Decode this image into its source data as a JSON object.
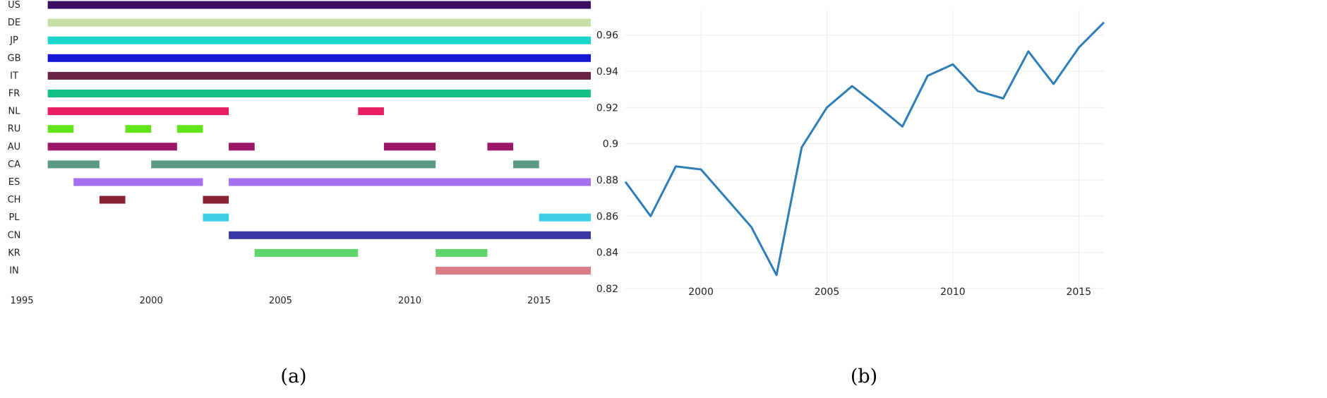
{
  "chart_data": [
    {
      "type": "timeline",
      "panel_label": "(a)",
      "x_ticks": [
        1995,
        2000,
        2005,
        2010,
        2015
      ],
      "xlim": [
        1995,
        2017
      ],
      "rows": [
        {
          "country": "US",
          "color": "#3b0d63",
          "intervals": [
            [
              1996,
              2017
            ]
          ]
        },
        {
          "country": "DE",
          "color": "#c4dea6",
          "intervals": [
            [
              1996,
              2017
            ]
          ]
        },
        {
          "country": "JP",
          "color": "#1ed5cc",
          "intervals": [
            [
              1996,
              2017
            ]
          ]
        },
        {
          "country": "GB",
          "color": "#1616d6",
          "intervals": [
            [
              1996,
              2017
            ]
          ]
        },
        {
          "country": "IT",
          "color": "#6a2347",
          "intervals": [
            [
              1996,
              2017
            ]
          ]
        },
        {
          "country": "FR",
          "color": "#16c186",
          "intervals": [
            [
              1996,
              2017
            ]
          ]
        },
        {
          "country": "NL",
          "color": "#e81d62",
          "intervals": [
            [
              1996,
              2003
            ],
            [
              2008,
              2009
            ]
          ]
        },
        {
          "country": "RU",
          "color": "#62e41a",
          "intervals": [
            [
              1996,
              1997
            ],
            [
              1999,
              2000
            ],
            [
              2001,
              2002
            ]
          ]
        },
        {
          "country": "AU",
          "color": "#9c1567",
          "intervals": [
            [
              1996,
              2001
            ],
            [
              2003,
              2004
            ],
            [
              2009,
              2011
            ],
            [
              2013,
              2014
            ]
          ]
        },
        {
          "country": "CA",
          "color": "#5d9a84",
          "intervals": [
            [
              1996,
              1998
            ],
            [
              2000,
              2011
            ],
            [
              2014,
              2015
            ]
          ]
        },
        {
          "country": "ES",
          "color": "#a56ff0",
          "intervals": [
            [
              1997,
              2002
            ],
            [
              2003,
              2017
            ]
          ]
        },
        {
          "country": "CH",
          "color": "#8b2231",
          "intervals": [
            [
              1998,
              1999
            ],
            [
              2002,
              2003
            ]
          ]
        },
        {
          "country": "PL",
          "color": "#3acfe2",
          "intervals": [
            [
              2002,
              2003
            ],
            [
              2015,
              2017
            ]
          ]
        },
        {
          "country": "CN",
          "color": "#3837a4",
          "intervals": [
            [
              2003,
              2017
            ]
          ]
        },
        {
          "country": "KR",
          "color": "#5fd66c",
          "intervals": [
            [
              2004,
              2008
            ],
            [
              2011,
              2013
            ]
          ]
        },
        {
          "country": "IN",
          "color": "#db7d88",
          "intervals": [
            [
              2011,
              2017
            ]
          ]
        }
      ]
    },
    {
      "type": "line",
      "panel_label": "(b)",
      "x": [
        1997,
        1998,
        1999,
        2000,
        2001,
        2002,
        2003,
        2004,
        2005,
        2006,
        2007,
        2008,
        2009,
        2010,
        2011,
        2012,
        2013,
        2014,
        2015,
        2016
      ],
      "values": [
        0.879,
        0.86,
        0.8875,
        0.8858,
        0.87,
        0.854,
        0.8275,
        0.898,
        0.92,
        0.9318,
        0.921,
        0.9095,
        0.9375,
        0.9438,
        0.929,
        0.925,
        0.951,
        0.933,
        0.953,
        0.967
      ],
      "x_ticks": [
        2000,
        2005,
        2010,
        2015
      ],
      "y_ticks": [
        "0.82",
        "0.84",
        "0.86",
        "0.88",
        "0.9",
        "0.92",
        "0.94",
        "0.96"
      ],
      "xlim": [
        1997,
        2016
      ],
      "ylim": [
        0.8165,
        0.9735
      ],
      "line_color": "#2e7db4",
      "grid": true
    }
  ]
}
